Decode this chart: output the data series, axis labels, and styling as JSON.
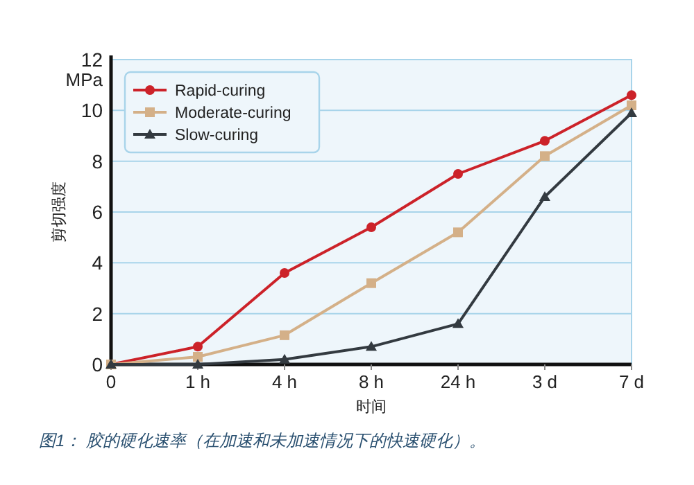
{
  "chart_data": {
    "type": "line",
    "xlabel": "时间",
    "ylabel": "剪切强度",
    "categories": [
      "0",
      "1 h",
      "4 h",
      "8 h",
      "24 h",
      "3 d",
      "7 d"
    ],
    "series": [
      {
        "name": "Rapid-curing",
        "color": "#cc2229",
        "marker": "circle",
        "values": [
          0,
          0.7,
          3.6,
          5.4,
          7.5,
          8.8,
          10.6
        ]
      },
      {
        "name": "Moderate-curing",
        "color": "#d4b088",
        "marker": "square",
        "values": [
          0,
          0.3,
          1.15,
          3.2,
          5.2,
          8.2,
          10.2
        ]
      },
      {
        "name": "Slow-curing",
        "color": "#333a40",
        "marker": "triangle",
        "values": [
          0,
          0,
          0.2,
          0.7,
          1.6,
          6.6,
          9.9
        ]
      }
    ],
    "ylim": [
      0,
      12
    ],
    "yticks": [
      0,
      2,
      4,
      6,
      8,
      10,
      12
    ],
    "grid": "y",
    "legend": "top left",
    "line_style": "solid",
    "annotations": [
      "MPa",
      "图1： 胶的硬化速率（在加速和未加速情况下的快速硬化）。"
    ]
  }
}
